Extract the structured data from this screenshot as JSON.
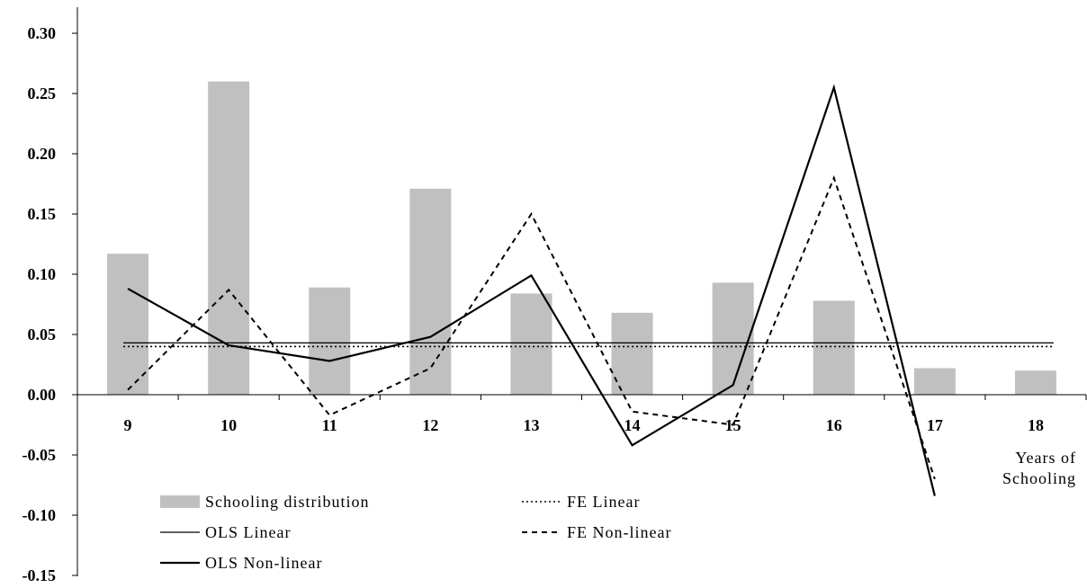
{
  "chart_data": {
    "type": "bar",
    "title": "",
    "xlabel_lines": [
      "Years of",
      "Schooling"
    ],
    "ylabel": "",
    "ylim": [
      -0.15,
      0.3
    ],
    "ytick_labels": [
      "0.30",
      "0.25",
      "0.20",
      "0.15",
      "0.10",
      "0.05",
      "0.00",
      "-0.05",
      "-0.10",
      "-0.15"
    ],
    "ytick_values": [
      0.3,
      0.25,
      0.2,
      0.15,
      0.1,
      0.05,
      0.0,
      -0.05,
      -0.1,
      -0.15
    ],
    "categories": [
      "9",
      "10",
      "11",
      "12",
      "13",
      "14",
      "15",
      "16",
      "17",
      "18"
    ],
    "grid": false,
    "legend_position": "bottom-left",
    "series": [
      {
        "name": "Schooling distribution",
        "kind": "bar",
        "color": "#c0c0c0",
        "values": [
          0.117,
          0.26,
          0.089,
          0.171,
          0.084,
          0.068,
          0.093,
          0.078,
          0.022,
          0.02
        ]
      },
      {
        "name": "OLS Linear",
        "kind": "hline",
        "style": "solid-thin",
        "color": "#000000",
        "value": 0.043
      },
      {
        "name": "OLS Non-linear",
        "kind": "line",
        "style": "solid-thick",
        "color": "#000000",
        "values": [
          0.088,
          0.041,
          0.028,
          0.048,
          0.099,
          -0.042,
          0.008,
          0.255,
          -0.084,
          null
        ]
      },
      {
        "name": "FE Linear",
        "kind": "hline",
        "style": "dotted",
        "color": "#000000",
        "value": 0.04
      },
      {
        "name": "FE Non-linear",
        "kind": "line",
        "style": "dashed",
        "color": "#000000",
        "values": [
          0.004,
          0.087,
          -0.017,
          0.022,
          0.15,
          -0.014,
          -0.025,
          0.18,
          -0.07,
          null
        ]
      }
    ]
  }
}
